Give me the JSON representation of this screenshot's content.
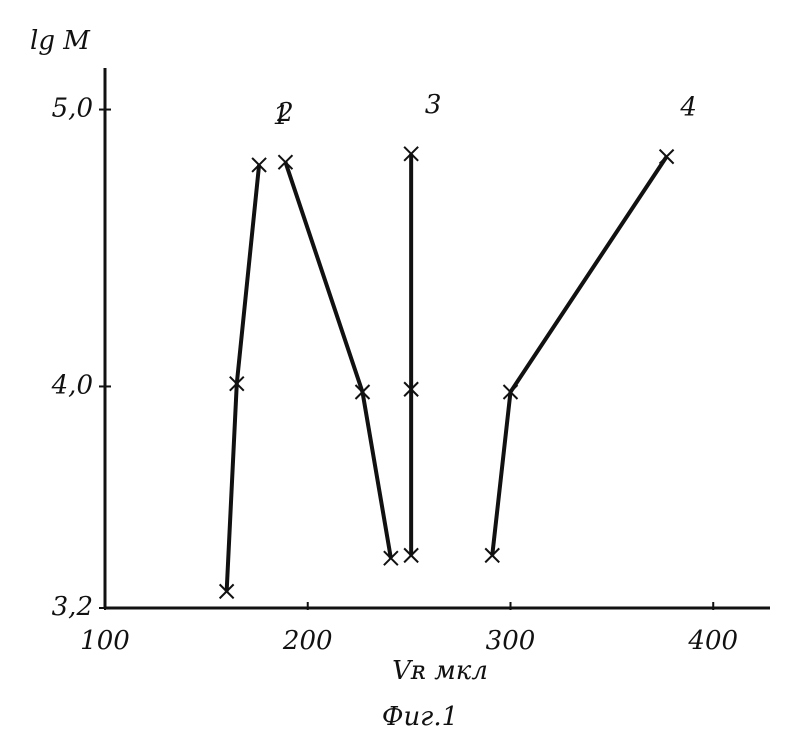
{
  "chart_data": {
    "type": "line",
    "x_label": "Vʀ мкл",
    "y_label": "lg M",
    "caption": "Фиг.1",
    "color": "#111111",
    "xlim": [
      100,
      428
    ],
    "ylim": [
      3.2,
      5.15
    ],
    "xticks": [
      100,
      200,
      300,
      400
    ],
    "yticks": [
      {
        "value": 3.2,
        "label": "3,2"
      },
      {
        "value": 4.0,
        "label": "4,0"
      },
      {
        "value": 5.0,
        "label": "5,0"
      }
    ],
    "series": [
      {
        "name": "1",
        "x": [
          160,
          165,
          176
        ],
        "values": [
          3.26,
          4.01,
          4.8
        ]
      },
      {
        "name": "2",
        "x": [
          189,
          227,
          241
        ],
        "values": [
          4.81,
          3.98,
          3.38
        ]
      },
      {
        "name": "3",
        "x": [
          251,
          251,
          251
        ],
        "values": [
          4.84,
          3.99,
          3.39
        ]
      },
      {
        "name": "4",
        "x": [
          291,
          300,
          377
        ],
        "values": [
          3.39,
          3.98,
          4.83
        ]
      }
    ]
  }
}
